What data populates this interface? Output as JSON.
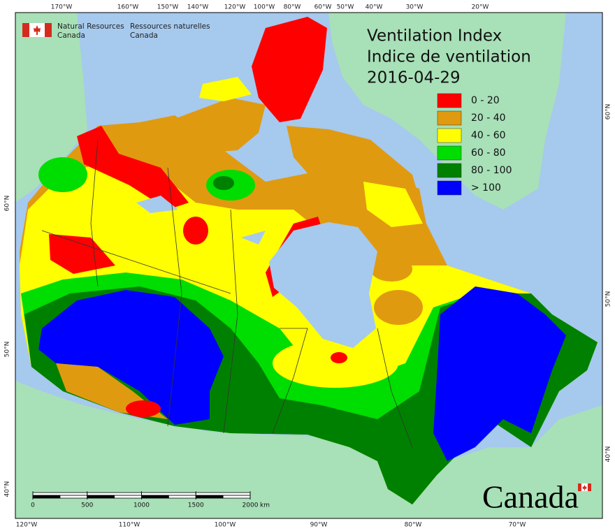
{
  "header": {
    "en_line1": "Natural Resources",
    "en_line2": "Canada",
    "fr_line1": "Ressources naturelles",
    "fr_line2": "Canada"
  },
  "title": {
    "line1": "Ventilation Index",
    "line2": "Indice de ventilation",
    "date": "2016-04-29"
  },
  "legend": [
    {
      "label": "0 - 20",
      "color": "#ff0000"
    },
    {
      "label": "20 - 40",
      "color": "#e09a10"
    },
    {
      "label": "40 - 60",
      "color": "#ffff00"
    },
    {
      "label": "60 - 80",
      "color": "#00dd00"
    },
    {
      "label": "80 - 100",
      "color": "#008000"
    },
    {
      "label": "> 100",
      "color": "#0000ff"
    }
  ],
  "graticule": {
    "top": [
      "170°W",
      "160°W",
      "150°W",
      "140°W",
      "120°W",
      "100°W",
      "80°W",
      "60°W",
      "50°W",
      "40°W",
      "30°W",
      "20°W"
    ],
    "bottom": [
      "120°W",
      "110°W",
      "100°W",
      "90°W",
      "80°W",
      "70°W"
    ],
    "left": [
      "60°N",
      "50°N",
      "40°N"
    ],
    "right": [
      "60°N",
      "50°N",
      "40°N"
    ]
  },
  "scale_bar": {
    "ticks": [
      0,
      500,
      1000,
      1500,
      2000
    ],
    "unit": "km"
  },
  "wordmark": "Canada"
}
